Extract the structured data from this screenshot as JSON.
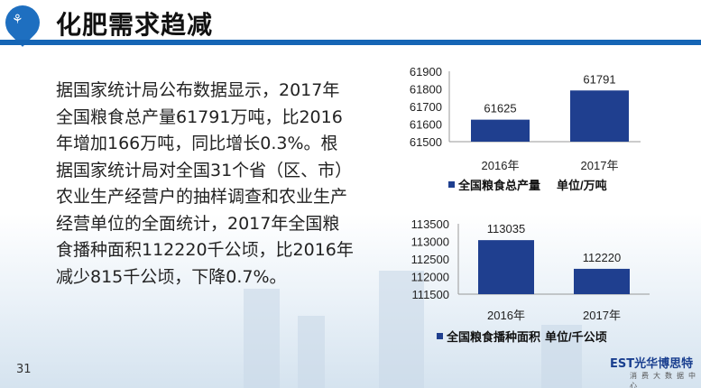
{
  "header": {
    "title": "化肥需求趋减",
    "logo_icon": "farm-location-pin-icon"
  },
  "body": {
    "paragraph": "据国家统计局公布数据显示，2017年全国粮食总产量61791万吨，比2016年增加166万吨，同比增长0.3%。根据国家统计局对全国31个省（区、市）农业生产经营户的抽样调查和农业生产经营单位的全面统计，2017年全国粮食播种面积112220千公顷，比2016年减少815千公顷，下降0.7%。"
  },
  "footer": {
    "page_number": "31",
    "brand_name": "EST光华博思特",
    "brand_subtitle": "消费大数据中心"
  },
  "colors": {
    "bar": "#1f3f8f",
    "accent": "#1565b5"
  },
  "chart_data": [
    {
      "type": "bar",
      "categories": [
        "2016年",
        "2017年"
      ],
      "values": [
        61625,
        61791
      ],
      "data_labels": [
        "61625",
        "61791"
      ],
      "yticks": [
        "61500",
        "61600",
        "61700",
        "61800",
        "61900"
      ],
      "ylim": [
        61500,
        61900
      ],
      "grid": false,
      "legend": "bottom",
      "series": [
        {
          "name": "全国粮食总产量",
          "values": [
            61625,
            61791
          ]
        }
      ],
      "unit_label": "单位/万吨"
    },
    {
      "type": "bar",
      "categories": [
        "2016年",
        "2017年"
      ],
      "values": [
        113035,
        112220
      ],
      "data_labels": [
        "113035",
        "112220"
      ],
      "yticks": [
        "111500",
        "112000",
        "112500",
        "113000",
        "113500"
      ],
      "ylim": [
        111500,
        113500
      ],
      "grid": false,
      "legend": "bottom",
      "series": [
        {
          "name": "全国粮食播种面积",
          "values": [
            113035,
            112220
          ]
        }
      ],
      "unit_label": "单位/千公顷"
    }
  ]
}
